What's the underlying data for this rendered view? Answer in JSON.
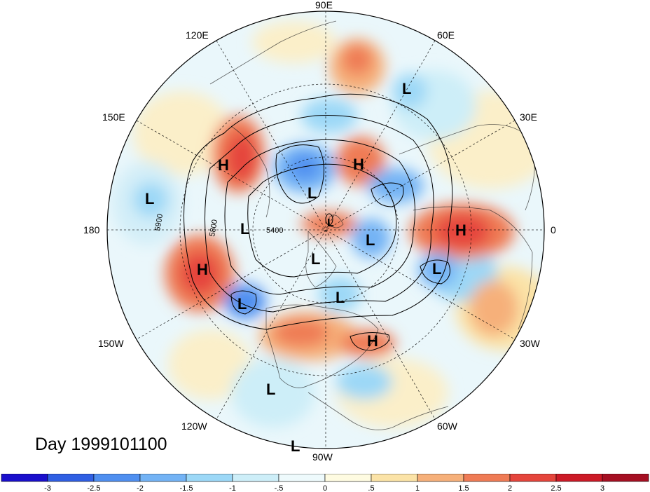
{
  "map": {
    "projection": "north-polar-stereographic",
    "longitude_labels": [
      "90E",
      "120E",
      "60E",
      "150E",
      "30E",
      "180",
      "0",
      "150W",
      "30W",
      "120W",
      "60W",
      "90W"
    ],
    "pressure_systems": [
      {
        "type": "H",
        "label": "H"
      },
      {
        "type": "H",
        "label": "H"
      },
      {
        "type": "H",
        "label": "H"
      },
      {
        "type": "H",
        "label": "H"
      },
      {
        "type": "H",
        "label": "H"
      },
      {
        "type": "L",
        "label": "L"
      },
      {
        "type": "L",
        "label": "L"
      },
      {
        "type": "L",
        "label": "L"
      },
      {
        "type": "L",
        "label": "L"
      },
      {
        "type": "L",
        "label": "L"
      },
      {
        "type": "L",
        "label": "L"
      },
      {
        "type": "L",
        "label": "L"
      },
      {
        "type": "L",
        "label": "L"
      },
      {
        "type": "L",
        "label": "L"
      },
      {
        "type": "L",
        "label": "L"
      },
      {
        "type": "L",
        "label": "L"
      },
      {
        "type": "L",
        "label": "L"
      }
    ],
    "contour_labels": [
      "5900",
      "5800",
      "5400"
    ],
    "day_label": "Day 1999101100"
  },
  "colorbar": {
    "tick_labels": [
      "-3",
      "-2.5",
      "-2",
      "-1.5",
      "-1",
      "-.5",
      "0",
      ".5",
      "1",
      "1.5",
      "2",
      "2.5",
      "3"
    ],
    "colors": [
      "#1a0fcc",
      "#2f5fe3",
      "#4f8ff0",
      "#73b3f5",
      "#9cd8f7",
      "#cdeef8",
      "#eefafc",
      "#fefbe1",
      "#fbe3a7",
      "#f6b07a",
      "#ef7b55",
      "#e5453c",
      "#cc1a26",
      "#a50f22"
    ]
  }
}
